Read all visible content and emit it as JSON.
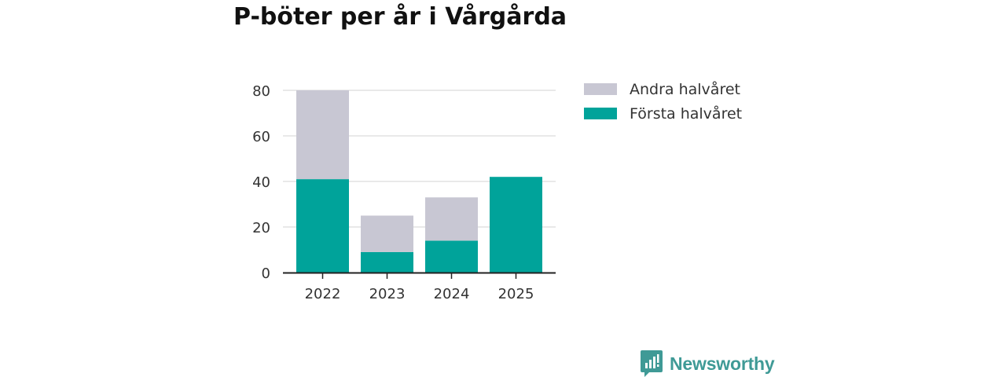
{
  "chart_data": {
    "type": "bar",
    "stacked": true,
    "title": "P-böter per år i Vårgårda",
    "categories": [
      "2022",
      "2023",
      "2024",
      "2025"
    ],
    "series": [
      {
        "name": "Första halvåret",
        "color": "#00a39a",
        "values": [
          41,
          9,
          14,
          42
        ]
      },
      {
        "name": "Andra halvåret",
        "color": "#c8c7d3",
        "values": [
          39,
          16,
          19,
          0
        ]
      }
    ],
    "ylim": [
      0,
      80
    ],
    "yticks": [
      0,
      20,
      40,
      60,
      80
    ],
    "xlabel": "",
    "ylabel": "",
    "legend": [
      {
        "label": "Andra halvåret",
        "color": "#c8c7d3"
      },
      {
        "label": "Första halvåret",
        "color": "#00a39a"
      }
    ]
  },
  "branding": {
    "name": "Newsworthy",
    "color": "#3f9a96"
  }
}
